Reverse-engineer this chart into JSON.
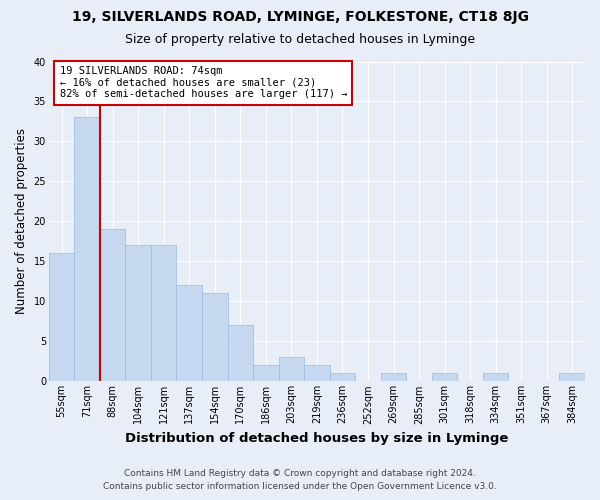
{
  "title1": "19, SILVERLANDS ROAD, LYMINGE, FOLKESTONE, CT18 8JG",
  "title2": "Size of property relative to detached houses in Lyminge",
  "xlabel": "Distribution of detached houses by size in Lyminge",
  "ylabel": "Number of detached properties",
  "categories": [
    "55sqm",
    "71sqm",
    "88sqm",
    "104sqm",
    "121sqm",
    "137sqm",
    "154sqm",
    "170sqm",
    "186sqm",
    "203sqm",
    "219sqm",
    "236sqm",
    "252sqm",
    "269sqm",
    "285sqm",
    "301sqm",
    "318sqm",
    "334sqm",
    "351sqm",
    "367sqm",
    "384sqm"
  ],
  "values": [
    16,
    33,
    19,
    17,
    17,
    12,
    11,
    7,
    2,
    3,
    2,
    1,
    0,
    1,
    0,
    1,
    0,
    1,
    0,
    0,
    1
  ],
  "bar_color": "#c6d8f0",
  "bar_edge_color": "#9bbce0",
  "property_line_color": "#cc0000",
  "annotation_text": "19 SILVERLANDS ROAD: 74sqm\n← 16% of detached houses are smaller (23)\n82% of semi-detached houses are larger (117) →",
  "annotation_box_color": "#ffffff",
  "annotation_box_edge": "#cc0000",
  "footnote1": "Contains HM Land Registry data © Crown copyright and database right 2024.",
  "footnote2": "Contains public sector information licensed under the Open Government Licence v3.0.",
  "ylim": [
    0,
    40
  ],
  "yticks": [
    0,
    5,
    10,
    15,
    20,
    25,
    30,
    35,
    40
  ],
  "background_color": "#e8eef8",
  "plot_bg_color": "#e8eef8",
  "grid_color": "#ffffff",
  "title1_fontsize": 10,
  "title2_fontsize": 9,
  "ylabel_fontsize": 8.5,
  "xlabel_fontsize": 9.5,
  "tick_fontsize": 7,
  "annot_fontsize": 7.5,
  "footnote_fontsize": 6.5
}
